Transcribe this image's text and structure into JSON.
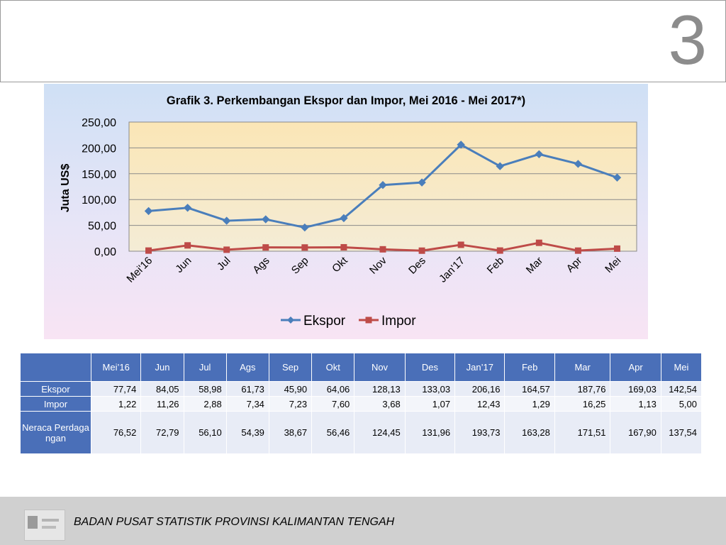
{
  "slide": {
    "number": "3"
  },
  "footer": {
    "text": "BADAN PUSAT STATISTIK  PROVINSI KALIMANTAN TENGAH"
  },
  "chart_data": {
    "type": "line",
    "title": "Grafik 3. Perkembangan Ekspor dan Impor, Mei 2016 - Mei 2017*)",
    "xlabel": "",
    "ylabel": "Juta US$",
    "categories": [
      "Mei'16",
      "Jun",
      "Jul",
      "Ags",
      "Sep",
      "Okt",
      "Nov",
      "Des",
      "Jan'17",
      "Feb",
      "Mar",
      "Apr",
      "Mei"
    ],
    "series": [
      {
        "name": "Ekspor",
        "color": "#4a7ebb",
        "marker": "diamond",
        "values": [
          77.74,
          84.05,
          58.98,
          61.73,
          45.9,
          64.06,
          128.13,
          133.03,
          206.16,
          164.57,
          187.76,
          169.03,
          142.54
        ]
      },
      {
        "name": "Impor",
        "color": "#be4b48",
        "marker": "square",
        "values": [
          1.22,
          11.26,
          2.88,
          7.34,
          7.23,
          7.6,
          3.68,
          1.07,
          12.43,
          1.29,
          16.25,
          1.13,
          5.0
        ]
      }
    ],
    "ylim": [
      0,
      250
    ],
    "yticks": [
      "0,00",
      "50,00",
      "100,00",
      "150,00",
      "200,00",
      "250,00"
    ],
    "grid": true,
    "legend": "bottom"
  },
  "table": {
    "columns": [
      "Mei’16",
      "Jun",
      "Jul",
      "Ags",
      "Sep",
      "Okt",
      "Nov",
      "Des",
      "Jan’17",
      "Feb",
      "Mar",
      "Apr",
      "Mei"
    ],
    "rows": [
      {
        "label": "Ekspor",
        "values": [
          "77,74",
          "84,05",
          "58,98",
          "61,73",
          "45,90",
          "64,06",
          "128,13",
          "133,03",
          "206,16",
          "164,57",
          "187,76",
          "169,03",
          "142,54"
        ]
      },
      {
        "label": "Impor",
        "values": [
          "1,22",
          "11,26",
          "2,88",
          "7,34",
          "7,23",
          "7,60",
          "3,68",
          "1,07",
          "12,43",
          "1,29",
          "16,25",
          "1,13",
          "5,00"
        ]
      },
      {
        "label": "Neraca Perdagangan",
        "values": [
          "76,52",
          "72,79",
          "56,10",
          "54,39",
          "38,67",
          "56,46",
          "124,45",
          "131,96",
          "193,73",
          "163,28",
          "171,51",
          "167,90",
          "137,54"
        ]
      }
    ]
  }
}
